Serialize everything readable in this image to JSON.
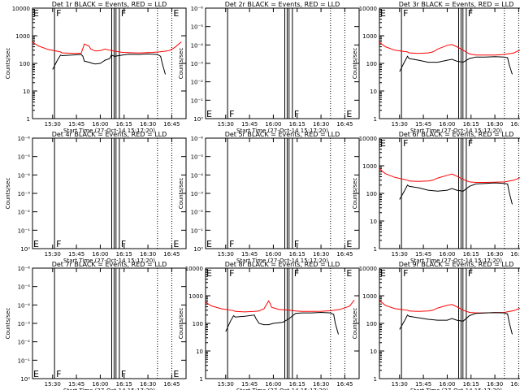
{
  "x_tick_labels": [
    "15:30",
    "15:45",
    "16:00",
    "16:15",
    "16:30",
    "16:45"
  ],
  "x_label": "Start Time (27-Oct-14 15:17:20)",
  "y_label": "Counts/sec",
  "y_ticks_data": [
    "1",
    "10",
    "100",
    "1000",
    "10000"
  ],
  "y_ticks_empty": [
    "10⁰",
    "10⁻¹",
    "10⁻²",
    "10⁻³",
    "10⁻⁴",
    "10⁻⁵",
    "10⁻⁶"
  ],
  "markers": {
    "egress": "E",
    "flare": "F"
  },
  "colors": {
    "events": "#000000",
    "lld": "#ff0000"
  },
  "chart_data": [
    {
      "type": "line",
      "title": "Det 1r BLACK = Events, RED = LLD",
      "has_data": true,
      "series": [
        {
          "x": [
            15.283,
            15.35,
            15.45,
            15.583,
            15.6,
            15.667,
            15.75,
            15.8,
            15.833,
            15.883,
            15.9,
            15.95,
            16.0,
            16.05,
            16.1,
            16.167,
            16.233,
            16.3,
            16.367,
            16.433,
            16.483,
            16.55,
            16.617,
            16.7,
            16.733,
            16.783,
            16.85
          ],
          "y": [
            600,
            430,
            320,
            260,
            240,
            235,
            230,
            235,
            500,
            420,
            330,
            280,
            290,
            330,
            300,
            270,
            250,
            245,
            240,
            240,
            245,
            250,
            260,
            280,
            300,
            380,
            600
          ]
        },
        {
          "x": [
            15.5,
            15.55,
            15.583,
            15.6,
            15.7,
            15.8,
            15.817,
            15.833,
            15.883,
            15.917,
            15.95,
            16.0,
            16.05,
            16.1,
            16.117,
            16.15,
            16.233,
            16.3,
            16.4,
            16.5,
            16.6,
            16.633,
            16.65,
            16.683
          ],
          "y": [
            60,
            130,
            200,
            190,
            200,
            210,
            180,
            120,
            110,
            100,
            95,
            100,
            130,
            150,
            200,
            180,
            200,
            215,
            210,
            220,
            210,
            180,
            100,
            40
          ]
        }
      ]
    },
    {
      "type": "line",
      "title": "Det 2r BLACK = Events, RED = LLD",
      "has_data": false,
      "series": []
    },
    {
      "type": "line",
      "title": "Det 3r BLACK = Events, RED = LLD",
      "has_data": true,
      "series": [
        {
          "x": [
            15.283,
            15.35,
            15.45,
            15.583,
            15.6,
            15.7,
            15.8,
            15.85,
            15.9,
            16.0,
            16.05,
            16.1,
            16.167,
            16.233,
            16.3,
            16.4,
            16.5,
            16.6,
            16.7,
            16.8,
            16.85
          ],
          "y": [
            600,
            400,
            300,
            260,
            240,
            230,
            240,
            260,
            330,
            450,
            480,
            400,
            300,
            220,
            200,
            200,
            200,
            210,
            240,
            350,
            600
          ]
        },
        {
          "x": [
            15.5,
            15.55,
            15.583,
            15.6,
            15.7,
            15.8,
            15.9,
            16.0,
            16.05,
            16.1,
            16.167,
            16.233,
            16.3,
            16.4,
            16.5,
            16.6,
            16.633,
            16.65,
            16.683
          ],
          "y": [
            50,
            110,
            180,
            150,
            130,
            110,
            110,
            130,
            140,
            120,
            110,
            150,
            170,
            170,
            175,
            170,
            160,
            90,
            40
          ]
        }
      ]
    },
    {
      "type": "line",
      "title": "Det 4r BLACK = Events, RED = LLD",
      "has_data": false,
      "series": []
    },
    {
      "type": "line",
      "title": "Det 5r BLACK = Events, RED = LLD",
      "has_data": false,
      "series": []
    },
    {
      "type": "line",
      "title": "Det 6r BLACK = Events, RED = LLD",
      "has_data": true,
      "series": [
        {
          "x": [
            15.283,
            15.35,
            15.45,
            15.583,
            15.6,
            15.7,
            15.8,
            15.85,
            15.9,
            16.0,
            16.05,
            16.1,
            16.167,
            16.233,
            16.3,
            16.4,
            16.5,
            16.6,
            16.7,
            16.8,
            16.85
          ],
          "y": [
            800,
            520,
            380,
            300,
            280,
            270,
            280,
            300,
            360,
            450,
            500,
            420,
            320,
            260,
            250,
            250,
            255,
            260,
            300,
            420,
            800
          ]
        },
        {
          "x": [
            15.5,
            15.55,
            15.583,
            15.6,
            15.7,
            15.8,
            15.9,
            16.0,
            16.05,
            16.1,
            16.167,
            16.233,
            16.3,
            16.4,
            16.5,
            16.6,
            16.633,
            16.65,
            16.683
          ],
          "y": [
            60,
            120,
            200,
            180,
            160,
            130,
            120,
            130,
            150,
            130,
            120,
            180,
            220,
            230,
            240,
            230,
            220,
            110,
            40
          ]
        }
      ]
    },
    {
      "type": "line",
      "title": "Det 7r BLACK = Events, RED = LLD",
      "has_data": false,
      "series": []
    },
    {
      "type": "line",
      "title": "Det 8r BLACK = Events, RED = LLD",
      "has_data": true,
      "series": [
        {
          "x": [
            15.283,
            15.35,
            15.45,
            15.583,
            15.6,
            15.7,
            15.8,
            15.85,
            15.883,
            15.9,
            15.95,
            15.967,
            15.983,
            16.033,
            16.05,
            16.1,
            16.167,
            16.233,
            16.3,
            16.4,
            16.5,
            16.6,
            16.7,
            16.8,
            16.85
          ],
          "y": [
            600,
            430,
            340,
            290,
            270,
            260,
            270,
            280,
            320,
            330,
            650,
            520,
            380,
            340,
            320,
            310,
            300,
            280,
            270,
            270,
            275,
            285,
            320,
            420,
            700
          ]
        },
        {
          "x": [
            15.5,
            15.55,
            15.583,
            15.6,
            15.7,
            15.8,
            15.817,
            15.85,
            15.9,
            15.95,
            16.0,
            16.1,
            16.167,
            16.233,
            16.3,
            16.4,
            16.5,
            16.6,
            16.633,
            16.65,
            16.683
          ],
          "y": [
            50,
            120,
            190,
            170,
            180,
            200,
            150,
            100,
            90,
            90,
            100,
            110,
            150,
            230,
            240,
            240,
            250,
            240,
            210,
            100,
            40
          ]
        }
      ]
    },
    {
      "type": "line",
      "title": "Det 9r BLACK = Events, RED = LLD",
      "has_data": true,
      "series": [
        {
          "x": [
            15.283,
            15.35,
            15.45,
            15.583,
            15.6,
            15.7,
            15.8,
            15.85,
            15.9,
            16.0,
            16.05,
            16.1,
            16.167,
            16.233,
            16.3,
            16.4,
            16.5,
            16.6,
            16.7,
            16.8,
            16.85
          ],
          "y": [
            700,
            450,
            340,
            300,
            280,
            270,
            280,
            300,
            360,
            450,
            480,
            400,
            300,
            250,
            240,
            240,
            245,
            250,
            290,
            400,
            700
          ]
        },
        {
          "x": [
            15.5,
            15.55,
            15.583,
            15.6,
            15.7,
            15.8,
            15.9,
            16.0,
            16.05,
            16.1,
            16.167,
            16.233,
            16.3,
            16.4,
            16.5,
            16.6,
            16.633,
            16.65,
            16.683
          ],
          "y": [
            60,
            120,
            200,
            180,
            160,
            140,
            130,
            130,
            150,
            130,
            120,
            190,
            230,
            240,
            245,
            240,
            220,
            110,
            40
          ]
        }
      ]
    }
  ]
}
